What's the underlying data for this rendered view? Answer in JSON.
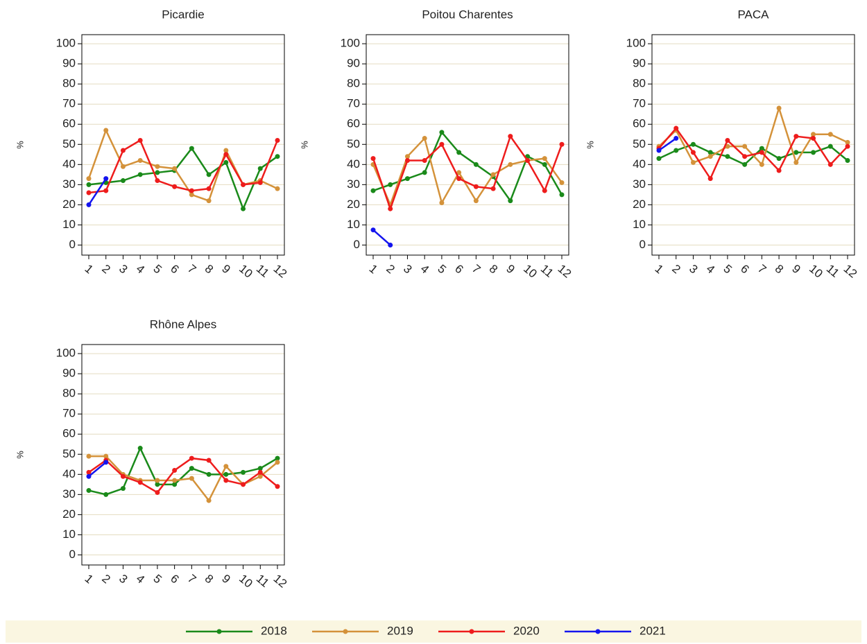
{
  "chart_data": [
    {
      "type": "line",
      "title": "Picardie",
      "ylabel": "%",
      "categories": [
        1,
        2,
        3,
        4,
        5,
        6,
        7,
        8,
        9,
        10,
        11,
        12
      ],
      "ylim": [
        -5,
        104.5
      ],
      "yticks": [
        0,
        10,
        20,
        30,
        40,
        50,
        60,
        70,
        80,
        90,
        100
      ],
      "grid": true,
      "series": [
        {
          "values": [
            30,
            31,
            32,
            35,
            36,
            37,
            48,
            35,
            41,
            18,
            38,
            44
          ]
        },
        {
          "values": [
            33,
            57,
            39,
            42,
            39,
            38,
            25,
            22,
            47,
            30,
            32,
            28
          ]
        },
        {
          "values": [
            26,
            27,
            47,
            52,
            32,
            29,
            27,
            28,
            45,
            30,
            31,
            52
          ]
        },
        {
          "values": [
            20,
            33,
            null,
            null,
            null,
            null,
            null,
            null,
            null,
            null,
            null,
            null
          ]
        }
      ]
    },
    {
      "type": "line",
      "title": "Poitou Charentes",
      "ylabel": "%",
      "categories": [
        1,
        2,
        3,
        4,
        5,
        6,
        7,
        8,
        9,
        10,
        11,
        12
      ],
      "ylim": [
        -5,
        104.5
      ],
      "yticks": [
        0,
        10,
        20,
        30,
        40,
        50,
        60,
        70,
        80,
        90,
        100
      ],
      "grid": true,
      "series": [
        {
          "values": [
            27,
            30,
            33,
            36,
            56,
            46,
            40,
            34,
            22,
            44,
            40,
            25
          ]
        },
        {
          "values": [
            40,
            20,
            44,
            53,
            21,
            36,
            22,
            35,
            40,
            42,
            43,
            31
          ]
        },
        {
          "values": [
            43,
            18,
            42,
            42,
            50,
            33,
            29,
            28,
            54,
            42,
            27,
            50
          ]
        },
        {
          "values": [
            7.5,
            0,
            null,
            null,
            null,
            null,
            null,
            null,
            null,
            null,
            null,
            null
          ]
        }
      ]
    },
    {
      "type": "line",
      "title": "PACA",
      "ylabel": "%",
      "categories": [
        1,
        2,
        3,
        4,
        5,
        6,
        7,
        8,
        9,
        10,
        11,
        12
      ],
      "ylim": [
        -5,
        104.5
      ],
      "yticks": [
        0,
        10,
        20,
        30,
        40,
        50,
        60,
        70,
        80,
        90,
        100
      ],
      "grid": true,
      "series": [
        {
          "values": [
            43,
            47,
            50,
            46,
            44,
            40,
            48,
            43,
            46,
            46,
            49,
            42
          ]
        },
        {
          "values": [
            49,
            57,
            41,
            44,
            49,
            49,
            40,
            68,
            41,
            55,
            55,
            51
          ]
        },
        {
          "values": [
            48,
            58,
            46,
            33,
            52,
            44,
            46,
            37,
            54,
            53,
            40,
            49
          ]
        },
        {
          "values": [
            47,
            53,
            null,
            null,
            null,
            null,
            null,
            null,
            null,
            null,
            null,
            null
          ]
        }
      ]
    },
    {
      "type": "line",
      "title": "Rhône Alpes",
      "ylabel": "%",
      "categories": [
        1,
        2,
        3,
        4,
        5,
        6,
        7,
        8,
        9,
        10,
        11,
        12
      ],
      "ylim": [
        -5,
        104.5
      ],
      "yticks": [
        0,
        10,
        20,
        30,
        40,
        50,
        60,
        70,
        80,
        90,
        100
      ],
      "grid": true,
      "series": [
        {
          "values": [
            32,
            30,
            33,
            53,
            35,
            35,
            43,
            40,
            40,
            41,
            43,
            48
          ]
        },
        {
          "values": [
            49,
            49,
            40,
            37,
            37,
            37,
            38,
            27,
            44,
            35,
            39,
            46
          ]
        },
        {
          "values": [
            41,
            47,
            39,
            36,
            31,
            42,
            48,
            47,
            37,
            35,
            41,
            34
          ]
        },
        {
          "values": [
            39,
            46,
            null,
            null,
            null,
            null,
            null,
            null,
            null,
            null,
            null,
            null
          ]
        }
      ]
    }
  ],
  "legend": [
    {
      "name": "2018",
      "color": "#1a8a1a"
    },
    {
      "name": "2019",
      "color": "#d4923a"
    },
    {
      "name": "2020",
      "color": "#ee1c1c"
    },
    {
      "name": "2021",
      "color": "#1414ee"
    }
  ]
}
